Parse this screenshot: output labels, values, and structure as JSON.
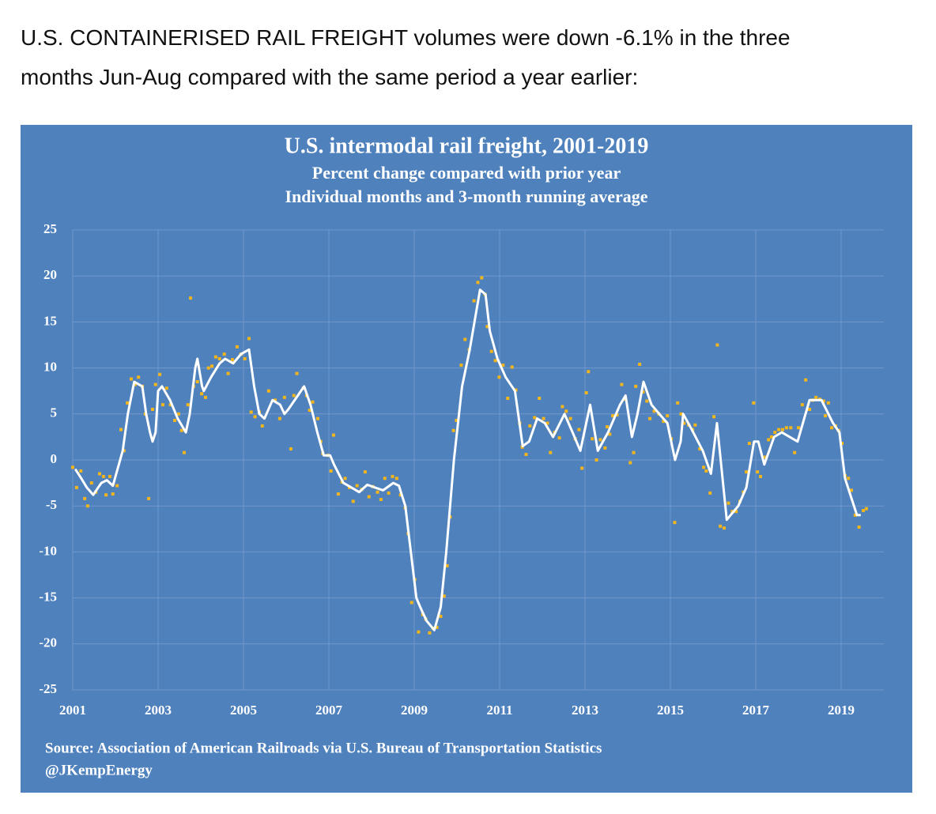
{
  "intro": [
    "U.S. CONTAINERISED RAIL FREIGHT volumes were down -6.1% in the three",
    "months Jun-Aug compared with the same period a year earlier:"
  ],
  "chart_data": {
    "type": "scatter",
    "title": "U.S. intermodal rail freight, 2001-2019",
    "subtitle": [
      "Percent change compared with prior year",
      "Individual months and 3-month running average"
    ],
    "source": [
      "Source: Association of American Railroads via U.S. Bureau of Transportation Statistics",
      "@JKempEnergy"
    ],
    "xlim": [
      2001,
      2020
    ],
    "xticks": [
      2001,
      2003,
      2005,
      2007,
      2009,
      2011,
      2013,
      2015,
      2017,
      2019
    ],
    "ylim": [
      -25,
      25
    ],
    "yticks": [
      25,
      20,
      15,
      10,
      5,
      0,
      -5,
      -10,
      -15,
      -20,
      -25
    ],
    "grid": true,
    "background": "#4f81bd",
    "grid_color": "#7098cb",
    "series": [
      {
        "kind": "points",
        "color": "#f2b61c",
        "x": [
          2001.0,
          2001.09,
          2001.19,
          2001.28,
          2001.35,
          2001.44,
          2001.54,
          2001.63,
          2001.72,
          2001.78,
          2001.87,
          2001.94,
          2002.04,
          2002.13,
          2002.2,
          2002.28,
          2002.37,
          2002.46,
          2002.54,
          2002.63,
          2002.7,
          2002.78,
          2002.87,
          2002.94,
          2003.04,
          2003.11,
          2003.2,
          2003.29,
          2003.39,
          2003.48,
          2003.55,
          2003.61,
          2003.7,
          2003.76,
          2003.83,
          2003.92,
          2004.02,
          2004.11,
          2004.18,
          2004.26,
          2004.35,
          2004.44,
          2004.55,
          2004.64,
          2004.74,
          2004.85,
          2004.94,
          2005.03,
          2005.13,
          2005.18,
          2005.27,
          2005.37,
          2005.44,
          2005.59,
          2005.74,
          2005.85,
          2005.96,
          2006.11,
          2006.18,
          2006.25,
          2006.4,
          2006.48,
          2006.55,
          2006.62,
          2006.74,
          2006.81,
          2006.86,
          2006.98,
          2007.05,
          2007.11,
          2007.22,
          2007.31,
          2007.38,
          2007.48,
          2007.57,
          2007.66,
          2007.77,
          2007.85,
          2007.94,
          2008.03,
          2008.14,
          2008.22,
          2008.31,
          2008.4,
          2008.49,
          2008.59,
          2008.68,
          2008.79,
          2008.86,
          2008.94,
          2009.01,
          2009.1,
          2009.2,
          2009.27,
          2009.36,
          2009.44,
          2009.53,
          2009.62,
          2009.7,
          2009.77,
          2009.84,
          2009.92,
          2009.99,
          2010.1,
          2010.19,
          2010.29,
          2010.4,
          2010.49,
          2010.58,
          2010.66,
          2010.71,
          2010.81,
          2010.9,
          2010.99,
          2011.08,
          2011.19,
          2011.29,
          2011.38,
          2011.47,
          2011.53,
          2011.62,
          2011.71,
          2011.82,
          2011.93,
          2012.03,
          2012.12,
          2012.19,
          2012.29,
          2012.4,
          2012.47,
          2012.56,
          2012.66,
          2012.77,
          2012.86,
          2012.93,
          2013.03,
          2013.08,
          2013.17,
          2013.27,
          2013.36,
          2013.47,
          2013.52,
          2013.58,
          2013.65,
          2013.75,
          2013.86,
          2013.95,
          2014.06,
          2014.14,
          2014.19,
          2014.28,
          2014.36,
          2014.45,
          2014.52,
          2014.62,
          2014.73,
          2014.84,
          2014.93,
          2015.02,
          2015.1,
          2015.17,
          2015.25,
          2015.32,
          2015.43,
          2015.52,
          2015.58,
          2015.69,
          2015.78,
          2015.84,
          2015.93,
          2016.02,
          2016.1,
          2016.17,
          2016.26,
          2016.36,
          2016.45,
          2016.54,
          2016.63,
          2016.71,
          2016.78,
          2016.85,
          2016.95,
          2017.04,
          2017.11,
          2017.21,
          2017.3,
          2017.37,
          2017.45,
          2017.54,
          2017.63,
          2017.72,
          2017.82,
          2017.91,
          2018.0,
          2018.09,
          2018.17,
          2018.26,
          2018.33,
          2018.41,
          2018.5,
          2018.59,
          2018.63,
          2018.7,
          2018.78,
          2018.87,
          2018.94,
          2019.02,
          2019.09,
          2019.17,
          2019.24,
          2019.33,
          2019.42,
          2019.52,
          2019.59
        ],
        "values": [
          -0.8,
          -3,
          -1.2,
          -4.2,
          -5,
          -2.5,
          -3.5,
          -1.5,
          -1.8,
          -3.8,
          -1.8,
          -3.7,
          -2.8,
          3.3,
          1,
          6.2,
          8.8,
          8.2,
          9,
          8,
          5,
          -4.2,
          5.5,
          8.2,
          9.3,
          6,
          7.8,
          6,
          4.3,
          5,
          3.2,
          0.8,
          6,
          17.6,
          8,
          8.5,
          7.2,
          6.8,
          10,
          10.2,
          11.2,
          11,
          11.5,
          9.4,
          10.9,
          12.3,
          11.5,
          11,
          13.2,
          5.2,
          4.7,
          5.2,
          3.7,
          7.5,
          6.5,
          4.5,
          6.8,
          1.2,
          7,
          9.4,
          7.8,
          7,
          5.4,
          6.3,
          4.5,
          2,
          0.7,
          0.5,
          -1.2,
          2.7,
          -3.7,
          -2.4,
          -2,
          -3,
          -4.5,
          -2.8,
          -3.2,
          -1.3,
          -4,
          -2.9,
          -3.5,
          -4.3,
          -2,
          -3.6,
          -1.8,
          -2,
          -3.8,
          -5.2,
          -8,
          -15.5,
          -13,
          -18.7,
          -16.8,
          -17.3,
          -18.8,
          -18.3,
          -18.2,
          -17,
          -14.8,
          -11.5,
          -6.2,
          3.2,
          4.3,
          10.3,
          13.1,
          12,
          17.3,
          19.3,
          19.8,
          18,
          14.5,
          11.8,
          10.8,
          9,
          10.3,
          6.7,
          10.1,
          7.6,
          4,
          1.4,
          0.6,
          3.7,
          4.6,
          6.7,
          4.5,
          4,
          0.8,
          3,
          2.4,
          5.8,
          5.3,
          4.5,
          2.3,
          3.3,
          -0.9,
          7.3,
          9.6,
          2.3,
          0,
          2.2,
          1.3,
          3.6,
          2.8,
          4.8,
          4.9,
          8.2,
          6.6,
          -0.3,
          0.8,
          8,
          10.4,
          7.4,
          6.4,
          4.5,
          5.3,
          5,
          4.2,
          4.8,
          2.3,
          -6.8,
          6.2,
          5,
          4,
          3.8,
          3.3,
          3.8,
          1.2,
          -0.8,
          -1.2,
          -3.6,
          4.7,
          12.5,
          -7.2,
          -7.4,
          -4.7,
          -5.6,
          -5.6,
          -4.5,
          -3.5,
          -1.3,
          1.8,
          6.2,
          -1.3,
          -1.8,
          0.3,
          2.2,
          2.5,
          3,
          3.3,
          3.3,
          3.5,
          3.5,
          0.8,
          3.5,
          6,
          8.7,
          5.5,
          6.5,
          6.8,
          6.6,
          6.4,
          4.8,
          6.2,
          3.5,
          3.7,
          3.2,
          1.8,
          -1.7,
          -2,
          -3.3,
          -6,
          -7.3,
          -5.5,
          -5.3
        ]
      },
      {
        "kind": "line",
        "color": "#ffffff",
        "x": [
          2001.06,
          2001.2,
          2001.33,
          2001.48,
          2001.67,
          2001.8,
          2001.94,
          2002.17,
          2002.29,
          2002.44,
          2002.63,
          2002.72,
          2002.81,
          2002.87,
          2002.94,
          2003.0,
          2003.09,
          2003.28,
          2003.46,
          2003.65,
          2003.74,
          2003.87,
          2003.92,
          2004.03,
          2004.07,
          2004.24,
          2004.44,
          2004.57,
          2004.76,
          2004.94,
          2005.13,
          2005.25,
          2005.37,
          2005.49,
          2005.68,
          2005.86,
          2005.96,
          2006.05,
          2006.42,
          2006.57,
          2006.73,
          2006.88,
          2007.03,
          2007.12,
          2007.34,
          2007.53,
          2007.71,
          2007.9,
          2008.08,
          2008.27,
          2008.51,
          2008.64,
          2008.79,
          2008.92,
          2009.05,
          2009.14,
          2009.29,
          2009.47,
          2009.62,
          2009.75,
          2009.93,
          2010.12,
          2010.3,
          2010.54,
          2010.67,
          2010.77,
          2010.95,
          2011.14,
          2011.36,
          2011.54,
          2011.69,
          2011.88,
          2012.06,
          2012.25,
          2012.52,
          2012.71,
          2012.89,
          2013.12,
          2013.3,
          2013.54,
          2013.82,
          2013.95,
          2014.1,
          2014.23,
          2014.37,
          2014.56,
          2014.74,
          2014.93,
          2015.11,
          2015.24,
          2015.3,
          2015.48,
          2015.76,
          2015.95,
          2016.09,
          2016.32,
          2016.59,
          2016.78,
          2016.96,
          2017.06,
          2017.2,
          2017.43,
          2017.61,
          2017.98,
          2018.26,
          2018.54,
          2018.81,
          2018.96,
          2019.09,
          2019.37,
          2019.46
        ],
        "values": [
          -1,
          -2,
          -3,
          -3.8,
          -2.5,
          -2.2,
          -2.8,
          1,
          5,
          8.5,
          8,
          5,
          3,
          2,
          3,
          7.5,
          8,
          6.5,
          4.5,
          3,
          5,
          10,
          11,
          8,
          7.5,
          9,
          10.5,
          11,
          10.5,
          11.5,
          12,
          8,
          5,
          4.5,
          6.5,
          6,
          5,
          5.5,
          8,
          6,
          3,
          0.5,
          0.5,
          -0.5,
          -2.5,
          -3,
          -3.5,
          -2.7,
          -3,
          -3.3,
          -2.5,
          -2.8,
          -5,
          -10,
          -15,
          -16,
          -17.5,
          -18.5,
          -16,
          -10,
          0,
          8,
          12,
          18.5,
          18,
          14,
          11,
          9,
          7.5,
          1.5,
          2,
          4.5,
          4,
          2.5,
          5,
          3,
          1,
          6,
          1,
          3,
          6,
          7,
          2.5,
          5,
          8.5,
          6,
          5,
          4,
          0,
          2,
          5,
          3.5,
          1,
          -1.5,
          4,
          -6.5,
          -5,
          -3,
          2,
          2,
          -0.5,
          2.5,
          3,
          2,
          6.5,
          6.5,
          4,
          3,
          -2,
          -6,
          -6
        ]
      }
    ]
  }
}
